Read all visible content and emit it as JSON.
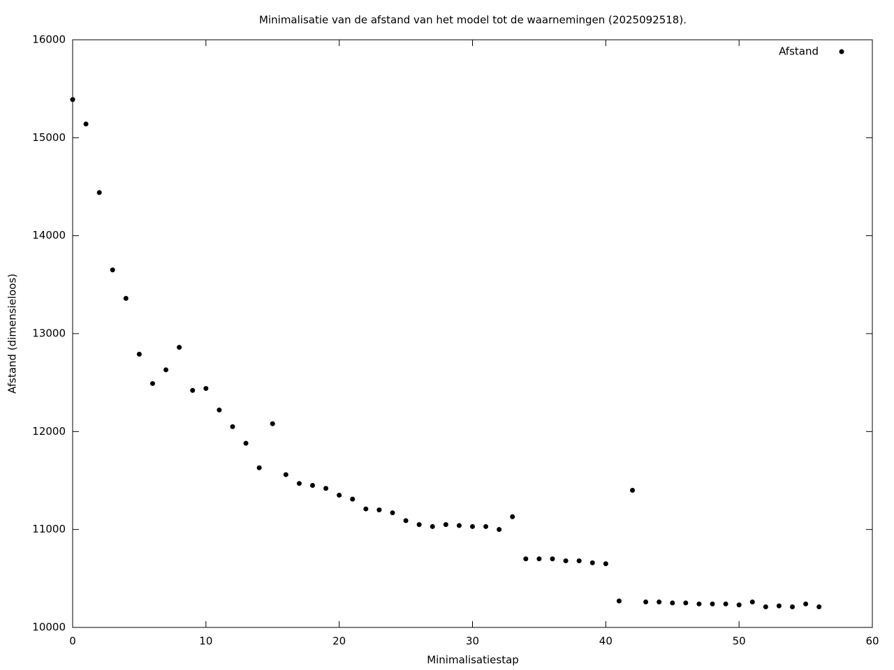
{
  "chart_data": {
    "type": "scatter",
    "title": "Minimalisatie van de afstand van het model tot de waarnemingen (2025092518).",
    "x_label": "Minimalisatiestap",
    "y_label": "Afstand (dimensieloos)",
    "legend": "top-right",
    "xlim": [
      0,
      60
    ],
    "xticks": [
      0,
      10,
      20,
      30,
      40,
      50,
      60
    ],
    "ylim": [
      10000,
      16000
    ],
    "yticks": [
      10000,
      11000,
      12000,
      13000,
      14000,
      15000,
      16000
    ],
    "series": [
      {
        "name": "Afstand",
        "color": "#000000",
        "x": [
          0,
          1,
          2,
          3,
          4,
          5,
          6,
          7,
          8,
          9,
          10,
          11,
          12,
          13,
          14,
          15,
          16,
          17,
          18,
          19,
          20,
          21,
          22,
          23,
          24,
          25,
          26,
          27,
          28,
          29,
          30,
          31,
          32,
          33,
          34,
          35,
          36,
          37,
          38,
          39,
          40,
          41,
          42,
          43,
          44,
          45,
          46,
          47,
          48,
          49,
          50,
          51,
          52,
          53,
          54,
          55,
          56
        ],
        "values": [
          15390,
          15140,
          14440,
          13650,
          13360,
          12790,
          12490,
          12630,
          12860,
          12420,
          12440,
          12220,
          12050,
          11880,
          11630,
          12080,
          11560,
          11470,
          11450,
          11420,
          11350,
          11310,
          11210,
          11200,
          11170,
          11090,
          11050,
          11030,
          11050,
          11040,
          11030,
          11030,
          11000,
          11130,
          10700,
          10700,
          10700,
          10680,
          10680,
          10660,
          10650,
          10270,
          11400,
          10260,
          10260,
          10250,
          10250,
          10240,
          10240,
          10240,
          10230,
          10260,
          10210,
          10220,
          10210,
          10240,
          10210
        ]
      }
    ]
  }
}
